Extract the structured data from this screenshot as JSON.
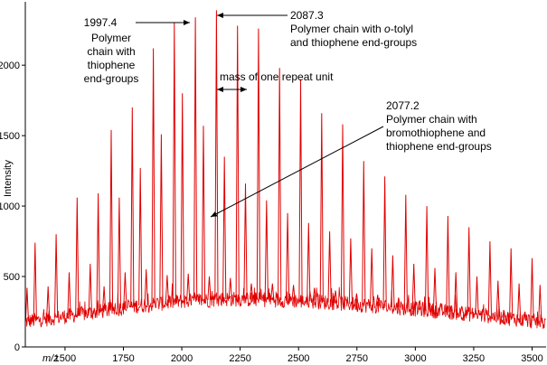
{
  "chart_data": {
    "type": "line",
    "title": "",
    "xlabel": "m/z",
    "ylabel": "Intensity",
    "xlim": [
      1330,
      3560
    ],
    "ylim": [
      0,
      2450
    ],
    "x_ticks": [
      1500,
      1750,
      2000,
      2250,
      2500,
      2750,
      3000,
      3250,
      3500
    ],
    "y_ticks": [
      0,
      500,
      1000,
      1500,
      2000
    ],
    "line_color": "#e00000",
    "repeat_unit": 90.1,
    "baseline": {
      "x": [
        1330,
        1450,
        1600,
        1800,
        2000,
        2200,
        2400,
        2600,
        2800,
        3000,
        3200,
        3400,
        3560
      ],
      "y": [
        180,
        205,
        240,
        290,
        325,
        340,
        335,
        320,
        295,
        270,
        240,
        205,
        170
      ]
    },
    "series": [
      {
        "name": "Mass spectrum peaks",
        "peak_mz": [
          1337.5,
          1371.8,
          1427.6,
          1461.9,
          1517.7,
          1552.0,
          1607.8,
          1642.1,
          1667.3,
          1697.9,
          1732.2,
          1757.4,
          1788.0,
          1822.3,
          1847.5,
          1878.1,
          1912.4,
          1937.6,
          1968.2,
          2002.5,
          2027.7,
          2058.3,
          2092.6,
          2117.8,
          2148.4,
          2182.7,
          2207.9,
          2238.5,
          2272.8,
          2298.0,
          2328.6,
          2362.9,
          2388.1,
          2418.7,
          2453.0,
          2478.2,
          2508.8,
          2543.1,
          2568.3,
          2598.9,
          2633.2,
          2658.4,
          2689.0,
          2723.3,
          2748.5,
          2779.1,
          2813.4,
          2838.6,
          2869.2,
          2903.5,
          2928.7,
          2959.3,
          2993.6,
          3018.8,
          3049.4,
          3083.7,
          3108.9,
          3139.5,
          3173.8,
          3199.0,
          3229.6,
          3263.9,
          3289.1,
          3319.7,
          3354.0,
          3379.2,
          3409.8,
          3444.1,
          3469.3,
          3499.9,
          3534.2
        ],
        "peak_intensity": [
          420,
          740,
          430,
          800,
          530,
          1060,
          590,
          1090,
          430,
          1540,
          1060,
          530,
          1700,
          1270,
          550,
          2120,
          1510,
          510,
          2300,
          1800,
          520,
          2340,
          1570,
          500,
          2390,
          1350,
          490,
          2280,
          1160,
          450,
          2260,
          1040,
          450,
          1980,
          950,
          440,
          1900,
          880,
          420,
          1660,
          820,
          400,
          1580,
          770,
          380,
          1320,
          700,
          370,
          1210,
          650,
          350,
          1080,
          590,
          330,
          1000,
          560,
          310,
          930,
          530,
          290,
          850,
          500,
          270,
          750,
          470,
          260,
          700,
          450,
          250,
          630,
          440
        ]
      }
    ],
    "annotations": [
      {
        "id": "a1997",
        "value": "1997.4",
        "lines": [
          "Polymer",
          "chain with",
          "thiophene",
          "end-groups"
        ],
        "mz": 2002.5
      },
      {
        "id": "a2087",
        "value": "2087.3",
        "lines_html": [
          "Polymer chain with o-tolyl",
          "and thiophene end-groups"
        ],
        "mz": 2092.6
      },
      {
        "id": "arepeat",
        "text": "mass of one repeat unit"
      },
      {
        "id": "a2077",
        "value": "2077.2",
        "lines": [
          "Polymer chain with",
          "bromothiophene and",
          "thiophene end-groups"
        ],
        "mz": 2077.2
      }
    ]
  },
  "labels": {
    "a1997_value": "1997.4",
    "a1997_l1": "Polymer",
    "a1997_l2": "chain with",
    "a1997_l3": "thiophene",
    "a1997_l4": "end-groups",
    "a2087_value": "2087.3",
    "a2087_l1a": "Polymer chain with ",
    "a2087_l1b": "o",
    "a2087_l1c": "-tolyl",
    "a2087_l2": "and thiophene end-groups",
    "repeat": "mass of one repeat unit",
    "a2077_value": "2077.2",
    "a2077_l1": "Polymer chain with",
    "a2077_l2": "bromothiophene and",
    "a2077_l3": "thiophene end-groups"
  }
}
